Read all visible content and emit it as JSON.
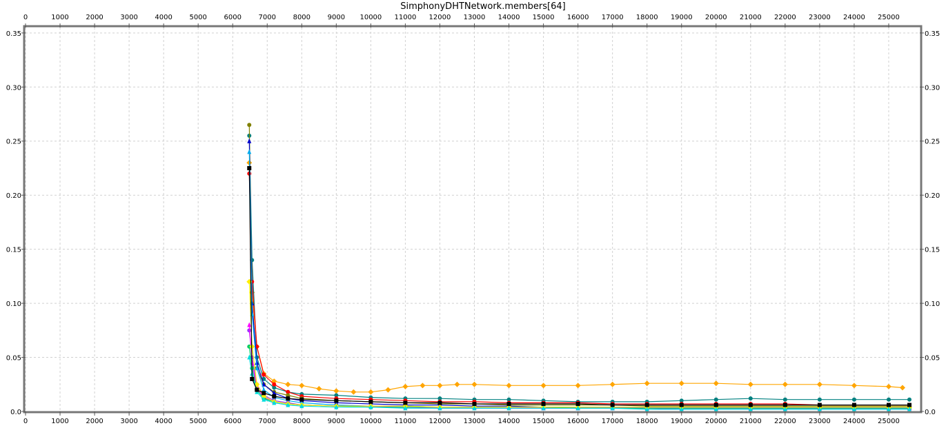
{
  "chart_data": {
    "type": "line",
    "title": "SimphonyDHTNetwork.members[64]",
    "xlabel": "",
    "ylabel": "",
    "xlim": [
      0,
      25900
    ],
    "ylim": [
      0,
      0.355
    ],
    "x_ticks": [
      0,
      1000,
      2000,
      3000,
      4000,
      5000,
      6000,
      7000,
      8000,
      9000,
      10000,
      11000,
      12000,
      13000,
      14000,
      15000,
      16000,
      17000,
      18000,
      19000,
      20000,
      21000,
      22000,
      23000,
      24000,
      25000
    ],
    "x_tick_labels": [
      "0",
      "1000",
      "2000",
      "3000",
      "4000",
      "5000",
      "6000",
      "7000",
      "8000",
      "9000",
      "10000",
      "11000",
      "12000",
      "13000",
      "14000",
      "15000",
      "16000",
      "17000",
      "18000",
      "19000",
      "20000",
      "21000",
      "22000",
      "23000",
      "24000",
      "25000"
    ],
    "y_ticks": [
      0,
      0.05,
      0.1,
      0.15,
      0.2,
      0.25,
      0.3,
      0.35
    ],
    "y_tick_labels": [
      "0.0",
      "0.05",
      "0.10",
      "0.15",
      "0.20",
      "0.25",
      "0.30",
      "0.35"
    ],
    "grid": true,
    "legend": "none",
    "series": [
      {
        "color": "#ffa500",
        "marker": "diamond",
        "x": [
          6480,
          6560,
          6700,
          6900,
          7200,
          7600,
          8000,
          8500,
          9000,
          9500,
          10000,
          10500,
          11000,
          11500,
          12000,
          12500,
          13000,
          14000,
          15000,
          16000,
          17000,
          18000,
          19000,
          20000,
          21000,
          22000,
          23000,
          24000,
          25000,
          25400
        ],
        "y": [
          0.23,
          0.11,
          0.06,
          0.035,
          0.028,
          0.025,
          0.024,
          0.021,
          0.019,
          0.018,
          0.018,
          0.02,
          0.023,
          0.024,
          0.024,
          0.025,
          0.025,
          0.024,
          0.024,
          0.024,
          0.025,
          0.026,
          0.026,
          0.026,
          0.025,
          0.025,
          0.025,
          0.024,
          0.023,
          0.022
        ]
      },
      {
        "color": "#008080",
        "marker": "circle",
        "x": [
          6480,
          6560,
          6700,
          6900,
          7200,
          7600,
          8000,
          9000,
          10000,
          11000,
          12000,
          13000,
          14000,
          15000,
          16000,
          17000,
          18000,
          19000,
          20000,
          21000,
          22000,
          23000,
          24000,
          25000,
          25600
        ],
        "y": [
          0.255,
          0.14,
          0.05,
          0.03,
          0.022,
          0.018,
          0.016,
          0.015,
          0.013,
          0.012,
          0.012,
          0.011,
          0.011,
          0.01,
          0.009,
          0.009,
          0.009,
          0.01,
          0.011,
          0.012,
          0.011,
          0.011,
          0.011,
          0.011,
          0.011
        ]
      },
      {
        "color": "#ff0000",
        "marker": "circle",
        "x": [
          6480,
          6560,
          6700,
          6900,
          7200,
          7600,
          8000,
          9000,
          10000,
          11000,
          12000,
          13000,
          14000,
          15000,
          16000,
          17000,
          18000,
          19000,
          20000,
          21000,
          22000,
          23000,
          24000,
          25000,
          25600
        ],
        "y": [
          0.22,
          0.12,
          0.06,
          0.034,
          0.025,
          0.018,
          0.014,
          0.012,
          0.011,
          0.01,
          0.009,
          0.009,
          0.008,
          0.008,
          0.008,
          0.007,
          0.007,
          0.007,
          0.007,
          0.007,
          0.007,
          0.006,
          0.006,
          0.006,
          0.006
        ]
      },
      {
        "color": "#808000",
        "marker": "circle",
        "x": [
          6480,
          6560,
          6700,
          6900,
          7200,
          7600,
          8000,
          9000,
          10000,
          11000,
          12000,
          13000,
          14000,
          15000,
          16000,
          17000,
          18000,
          19000,
          20000,
          21000,
          22000,
          23000,
          24000,
          25000,
          25600
        ],
        "y": [
          0.265,
          0.1,
          0.04,
          0.025,
          0.018,
          0.015,
          0.012,
          0.01,
          0.009,
          0.008,
          0.007,
          0.007,
          0.006,
          0.006,
          0.006,
          0.006,
          0.005,
          0.005,
          0.005,
          0.005,
          0.005,
          0.005,
          0.005,
          0.005,
          0.005
        ]
      },
      {
        "color": "#0000cc",
        "marker": "triangle",
        "x": [
          6480,
          6560,
          6700,
          6900,
          7200,
          7600,
          8000,
          9000,
          10000,
          11000,
          12000,
          13000,
          14000,
          15000,
          16000,
          17000,
          18000,
          19000,
          20000,
          21000,
          22000,
          23000,
          24000,
          25000,
          25600
        ],
        "y": [
          0.25,
          0.1,
          0.045,
          0.025,
          0.017,
          0.012,
          0.01,
          0.008,
          0.007,
          0.006,
          0.006,
          0.005,
          0.005,
          0.004,
          0.004,
          0.004,
          0.004,
          0.004,
          0.004,
          0.004,
          0.004,
          0.004,
          0.004,
          0.004,
          0.004
        ]
      },
      {
        "color": "#00aaee",
        "marker": "triangle",
        "x": [
          6480,
          6560,
          6700,
          6900,
          7200,
          7600,
          8000,
          9000,
          10000,
          11000,
          12000,
          13000,
          14000,
          15000,
          16000,
          17000,
          18000,
          19000,
          20000,
          21000,
          22000,
          23000,
          24000,
          25000,
          25600
        ],
        "y": [
          0.24,
          0.09,
          0.04,
          0.02,
          0.013,
          0.01,
          0.008,
          0.006,
          0.005,
          0.005,
          0.004,
          0.004,
          0.004,
          0.003,
          0.003,
          0.003,
          0.003,
          0.003,
          0.003,
          0.003,
          0.003,
          0.003,
          0.003,
          0.003,
          0.003
        ]
      },
      {
        "color": "#9933ff",
        "marker": "circle",
        "x": [
          6480,
          6560,
          6700,
          6900,
          7200,
          7600,
          8000,
          9000,
          10000,
          11000,
          12000,
          13000,
          14000,
          15000,
          16000,
          17000,
          18000,
          19000,
          20000,
          21000,
          22000,
          23000,
          24000,
          25000,
          25600
        ],
        "y": [
          0.075,
          0.05,
          0.025,
          0.015,
          0.01,
          0.008,
          0.006,
          0.005,
          0.004,
          0.004,
          0.003,
          0.003,
          0.003,
          0.003,
          0.003,
          0.003,
          0.003,
          0.002,
          0.002,
          0.002,
          0.002,
          0.002,
          0.002,
          0.002,
          0.002
        ]
      },
      {
        "color": "#ff00ff",
        "marker": "triangle",
        "x": [
          6480,
          6560,
          6700,
          6900,
          7200,
          7600,
          8000,
          9000,
          10000,
          11000,
          12000,
          13000,
          14000,
          15000,
          16000,
          17000,
          18000,
          19000,
          20000,
          21000,
          22000,
          23000,
          24000,
          25000,
          25600
        ],
        "y": [
          0.08,
          0.045,
          0.022,
          0.013,
          0.009,
          0.007,
          0.006,
          0.005,
          0.005,
          0.004,
          0.004,
          0.004,
          0.004,
          0.003,
          0.003,
          0.003,
          0.003,
          0.003,
          0.003,
          0.003,
          0.003,
          0.003,
          0.003,
          0.003,
          0.003
        ]
      },
      {
        "color": "#00cc66",
        "marker": "circle",
        "x": [
          6480,
          6560,
          6700,
          6900,
          7200,
          7600,
          8000,
          9000,
          10000,
          11000,
          12000,
          13000,
          14000,
          15000,
          16000,
          17000,
          18000,
          19000,
          20000,
          21000,
          22000,
          23000,
          24000,
          25000,
          25600
        ],
        "y": [
          0.06,
          0.04,
          0.02,
          0.012,
          0.009,
          0.007,
          0.006,
          0.005,
          0.004,
          0.004,
          0.004,
          0.004,
          0.004,
          0.004,
          0.003,
          0.003,
          0.003,
          0.003,
          0.003,
          0.003,
          0.003,
          0.003,
          0.003,
          0.003,
          0.003
        ]
      },
      {
        "color": "#ffee00",
        "marker": "diamond",
        "x": [
          6480,
          6560,
          6700,
          6900,
          7200,
          7600,
          8000,
          9000,
          10000,
          11000,
          12000,
          13000,
          14000,
          15000,
          16000,
          17000,
          18000,
          19000,
          20000,
          21000,
          22000,
          23000,
          24000,
          25000,
          25600
        ],
        "y": [
          0.12,
          0.06,
          0.025,
          0.014,
          0.009,
          0.007,
          0.006,
          0.005,
          0.005,
          0.005,
          0.004,
          0.004,
          0.004,
          0.004,
          0.004,
          0.004,
          0.004,
          0.004,
          0.004,
          0.004,
          0.004,
          0.004,
          0.004,
          0.004,
          0.004
        ]
      },
      {
        "color": "#00dddd",
        "marker": "triangle",
        "x": [
          6480,
          6560,
          6700,
          6900,
          7200,
          7600,
          8000,
          9000,
          10000,
          11000,
          12000,
          13000,
          14000,
          15000,
          16000,
          17000,
          18000,
          19000,
          20000,
          21000,
          22000,
          23000,
          24000,
          25000,
          25600
        ],
        "y": [
          0.05,
          0.035,
          0.018,
          0.011,
          0.008,
          0.006,
          0.005,
          0.004,
          0.004,
          0.003,
          0.003,
          0.003,
          0.003,
          0.003,
          0.003,
          0.003,
          0.002,
          0.002,
          0.002,
          0.002,
          0.002,
          0.002,
          0.002,
          0.002,
          0.002
        ]
      },
      {
        "color": "#000000",
        "marker": "square",
        "x": [
          6480,
          6560,
          6700,
          6900,
          7200,
          7600,
          8000,
          9000,
          10000,
          11000,
          12000,
          13000,
          14000,
          15000,
          16000,
          17000,
          18000,
          19000,
          20000,
          21000,
          22000,
          23000,
          24000,
          25000,
          25600
        ],
        "y": [
          0.225,
          0.03,
          0.02,
          0.017,
          0.014,
          0.012,
          0.011,
          0.01,
          0.009,
          0.008,
          0.008,
          0.007,
          0.007,
          0.007,
          0.007,
          0.006,
          0.006,
          0.006,
          0.006,
          0.006,
          0.006,
          0.006,
          0.006,
          0.006,
          0.006
        ]
      }
    ]
  }
}
